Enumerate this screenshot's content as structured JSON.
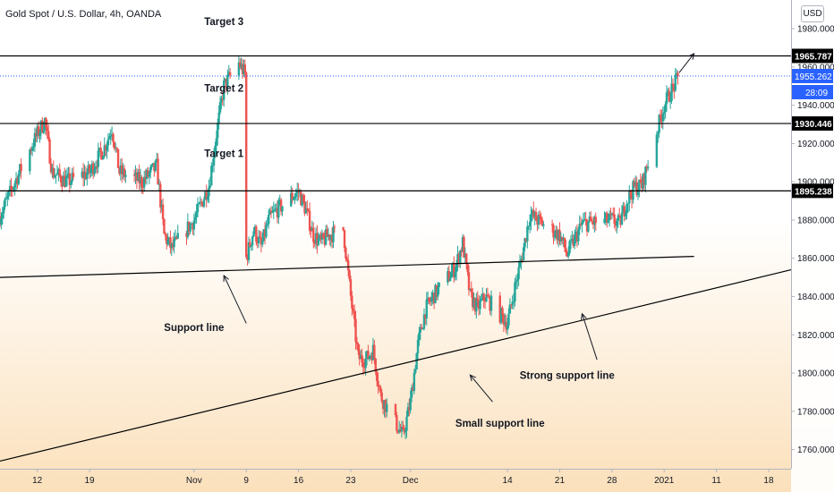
{
  "header": {
    "symbol_title": "Gold Spot / U.S. Dollar, 4h, OANDA",
    "currency_button": "USD"
  },
  "price_badges": {
    "countdown": "28:09"
  },
  "colors": {
    "up_candle": "#26a69a",
    "down_candle": "#ef5350",
    "current_price": "#2962ff",
    "line": "#000000",
    "bg_top": "#ffffff",
    "bg_bottom": "#fbe0bb"
  },
  "chart_data": {
    "type": "candlestick",
    "title": "Gold Spot / U.S. Dollar, 4h, OANDA",
    "ylim": [
      1750,
      1995
    ],
    "y_ticks": [
      1980,
      1960,
      1940,
      1920,
      1900,
      1880,
      1860,
      1840,
      1820,
      1800,
      1780,
      1760
    ],
    "y_tick_labels": [
      "1980.000",
      "1960.000",
      "1940.000",
      "1920.000",
      "1900.000",
      "1880.000",
      "1860.000",
      "1840.000",
      "1820.000",
      "1800.000",
      "1780.000",
      "1760.000"
    ],
    "x_range": [
      "2020-10-07",
      "2021-01-21"
    ],
    "x_ticks": [
      {
        "date": "2020-10-12",
        "label": "12"
      },
      {
        "date": "2020-10-19",
        "label": "19"
      },
      {
        "date": "2020-11-02",
        "label": "Nov"
      },
      {
        "date": "2020-11-09",
        "label": "9"
      },
      {
        "date": "2020-11-16",
        "label": "16"
      },
      {
        "date": "2020-11-23",
        "label": "23"
      },
      {
        "date": "2020-12-01",
        "label": "Dec"
      },
      {
        "date": "2020-12-14",
        "label": "14"
      },
      {
        "date": "2020-12-21",
        "label": "21"
      },
      {
        "date": "2020-12-28",
        "label": "28"
      },
      {
        "date": "2021-01-04",
        "label": "2021"
      },
      {
        "date": "2021-01-11",
        "label": "11"
      },
      {
        "date": "2021-01-18",
        "label": "18"
      }
    ],
    "price_path": [
      [
        "2020-10-07",
        1882
      ],
      [
        "2020-10-09",
        1900
      ],
      [
        "2020-10-12",
        1925
      ],
      [
        "2020-10-13",
        1932
      ],
      [
        "2020-10-14",
        1905
      ],
      [
        "2020-10-16",
        1900
      ],
      [
        "2020-10-19",
        1905
      ],
      [
        "2020-10-21",
        1918
      ],
      [
        "2020-10-22",
        1928
      ],
      [
        "2020-10-23",
        1905
      ],
      [
        "2020-10-26",
        1900
      ],
      [
        "2020-10-28",
        1908
      ],
      [
        "2020-10-29",
        1872
      ],
      [
        "2020-10-30",
        1865
      ],
      [
        "2020-11-02",
        1880
      ],
      [
        "2020-11-04",
        1898
      ],
      [
        "2020-11-05",
        1925
      ],
      [
        "2020-11-06",
        1950
      ],
      [
        "2020-11-08",
        1962
      ],
      [
        "2020-11-09",
        1955
      ],
      [
        "2020-11-09",
        1860
      ],
      [
        "2020-11-10",
        1875
      ],
      [
        "2020-11-11",
        1866
      ],
      [
        "2020-11-12",
        1880
      ],
      [
        "2020-11-13",
        1885
      ],
      [
        "2020-11-16",
        1895
      ],
      [
        "2020-11-17",
        1885
      ],
      [
        "2020-11-18",
        1872
      ],
      [
        "2020-11-19",
        1868
      ],
      [
        "2020-11-20",
        1872
      ],
      [
        "2020-11-22",
        1875
      ],
      [
        "2020-11-23",
        1840
      ],
      [
        "2020-11-24",
        1808
      ],
      [
        "2020-11-25",
        1807
      ],
      [
        "2020-11-26",
        1812
      ],
      [
        "2020-11-27",
        1788
      ],
      [
        "2020-11-30",
        1767
      ],
      [
        "2020-12-01",
        1785
      ],
      [
        "2020-12-02",
        1815
      ],
      [
        "2020-12-03",
        1833
      ],
      [
        "2020-12-04",
        1840
      ],
      [
        "2020-12-07",
        1855
      ],
      [
        "2020-12-08",
        1868
      ],
      [
        "2020-12-09",
        1840
      ],
      [
        "2020-12-10",
        1834
      ],
      [
        "2020-12-11",
        1840
      ],
      [
        "2020-12-14",
        1826
      ],
      [
        "2020-12-15",
        1845
      ],
      [
        "2020-12-16",
        1862
      ],
      [
        "2020-12-17",
        1883
      ],
      [
        "2020-12-18",
        1880
      ],
      [
        "2020-12-21",
        1872
      ],
      [
        "2020-12-22",
        1862
      ],
      [
        "2020-12-23",
        1870
      ],
      [
        "2020-12-24",
        1878
      ],
      [
        "2020-12-28",
        1880
      ],
      [
        "2020-12-29",
        1878
      ],
      [
        "2020-12-30",
        1890
      ],
      [
        "2020-12-31",
        1897
      ],
      [
        "2021-01-01",
        1898
      ],
      [
        "2021-01-04",
        1940
      ],
      [
        "2021-01-05",
        1948
      ],
      [
        "2021-01-06",
        1955
      ]
    ],
    "levels": [
      {
        "value": 1965.787,
        "label": "1965.787"
      },
      {
        "value": 1930.446,
        "label": "1930.446"
      },
      {
        "value": 1895.238,
        "label": "1895.238"
      }
    ],
    "current_price": {
      "value": 1955.262,
      "label": "1955.262"
    },
    "trendlines": [
      {
        "name": "support-line",
        "from": [
          "2020-10-07",
          1850
        ],
        "to": [
          "2021-01-08",
          1861
        ]
      },
      {
        "name": "strong-support-line",
        "from": [
          "2020-10-07",
          1754
        ],
        "to": [
          "2021-01-21",
          1854
        ]
      }
    ],
    "annotations": [
      {
        "text": "Target 3",
        "at": [
          "2020-11-06",
          1982
        ]
      },
      {
        "text": "Target 2",
        "at": [
          "2020-11-06",
          1947
        ]
      },
      {
        "text": "Target 1",
        "at": [
          "2020-11-06",
          1913
        ]
      },
      {
        "text": "Support line",
        "at": [
          "2020-11-02",
          1822
        ]
      },
      {
        "text": "Strong support line",
        "at": [
          "2020-12-22",
          1797
        ]
      },
      {
        "text": "Small support line",
        "at": [
          "2020-12-13",
          1772
        ]
      }
    ],
    "arrows": [
      {
        "from": [
          "2020-11-09",
          1826
        ],
        "to": [
          "2020-11-06",
          1851
        ]
      },
      {
        "from": [
          "2020-12-26",
          1807
        ],
        "to": [
          "2020-12-24",
          1831
        ]
      },
      {
        "from": [
          "2020-12-12",
          1785
        ],
        "to": [
          "2020-12-09",
          1799
        ]
      },
      {
        "from": [
          "2021-01-06",
          1957
        ],
        "to": [
          "2021-01-08",
          1967
        ]
      }
    ],
    "grid": false,
    "price_scale": "right"
  }
}
